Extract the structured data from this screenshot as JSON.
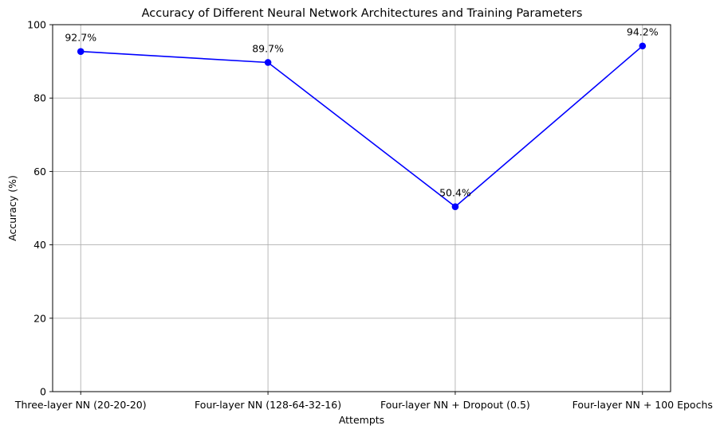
{
  "chart_data": {
    "type": "line",
    "title": "Accuracy of Different Neural Network Architectures and Training Parameters",
    "xlabel": "Attempts",
    "ylabel": "Accuracy (%)",
    "categories": [
      "Three-layer NN (20-20-20)",
      "Four-layer NN (128-64-32-16)",
      "Four-layer NN + Dropout (0.5)",
      "Four-layer NN + 100 Epochs"
    ],
    "series": [
      {
        "values": [
          92.7,
          89.7,
          50.4,
          94.2
        ],
        "color": "#0000ff",
        "marker": "circle"
      }
    ],
    "data_labels": [
      "92.7%",
      "89.7%",
      "50.4%",
      "94.2%"
    ],
    "ylim": [
      0,
      100
    ],
    "yticks": [
      0,
      20,
      40,
      60,
      80,
      100
    ],
    "grid": true,
    "legend": "none"
  }
}
